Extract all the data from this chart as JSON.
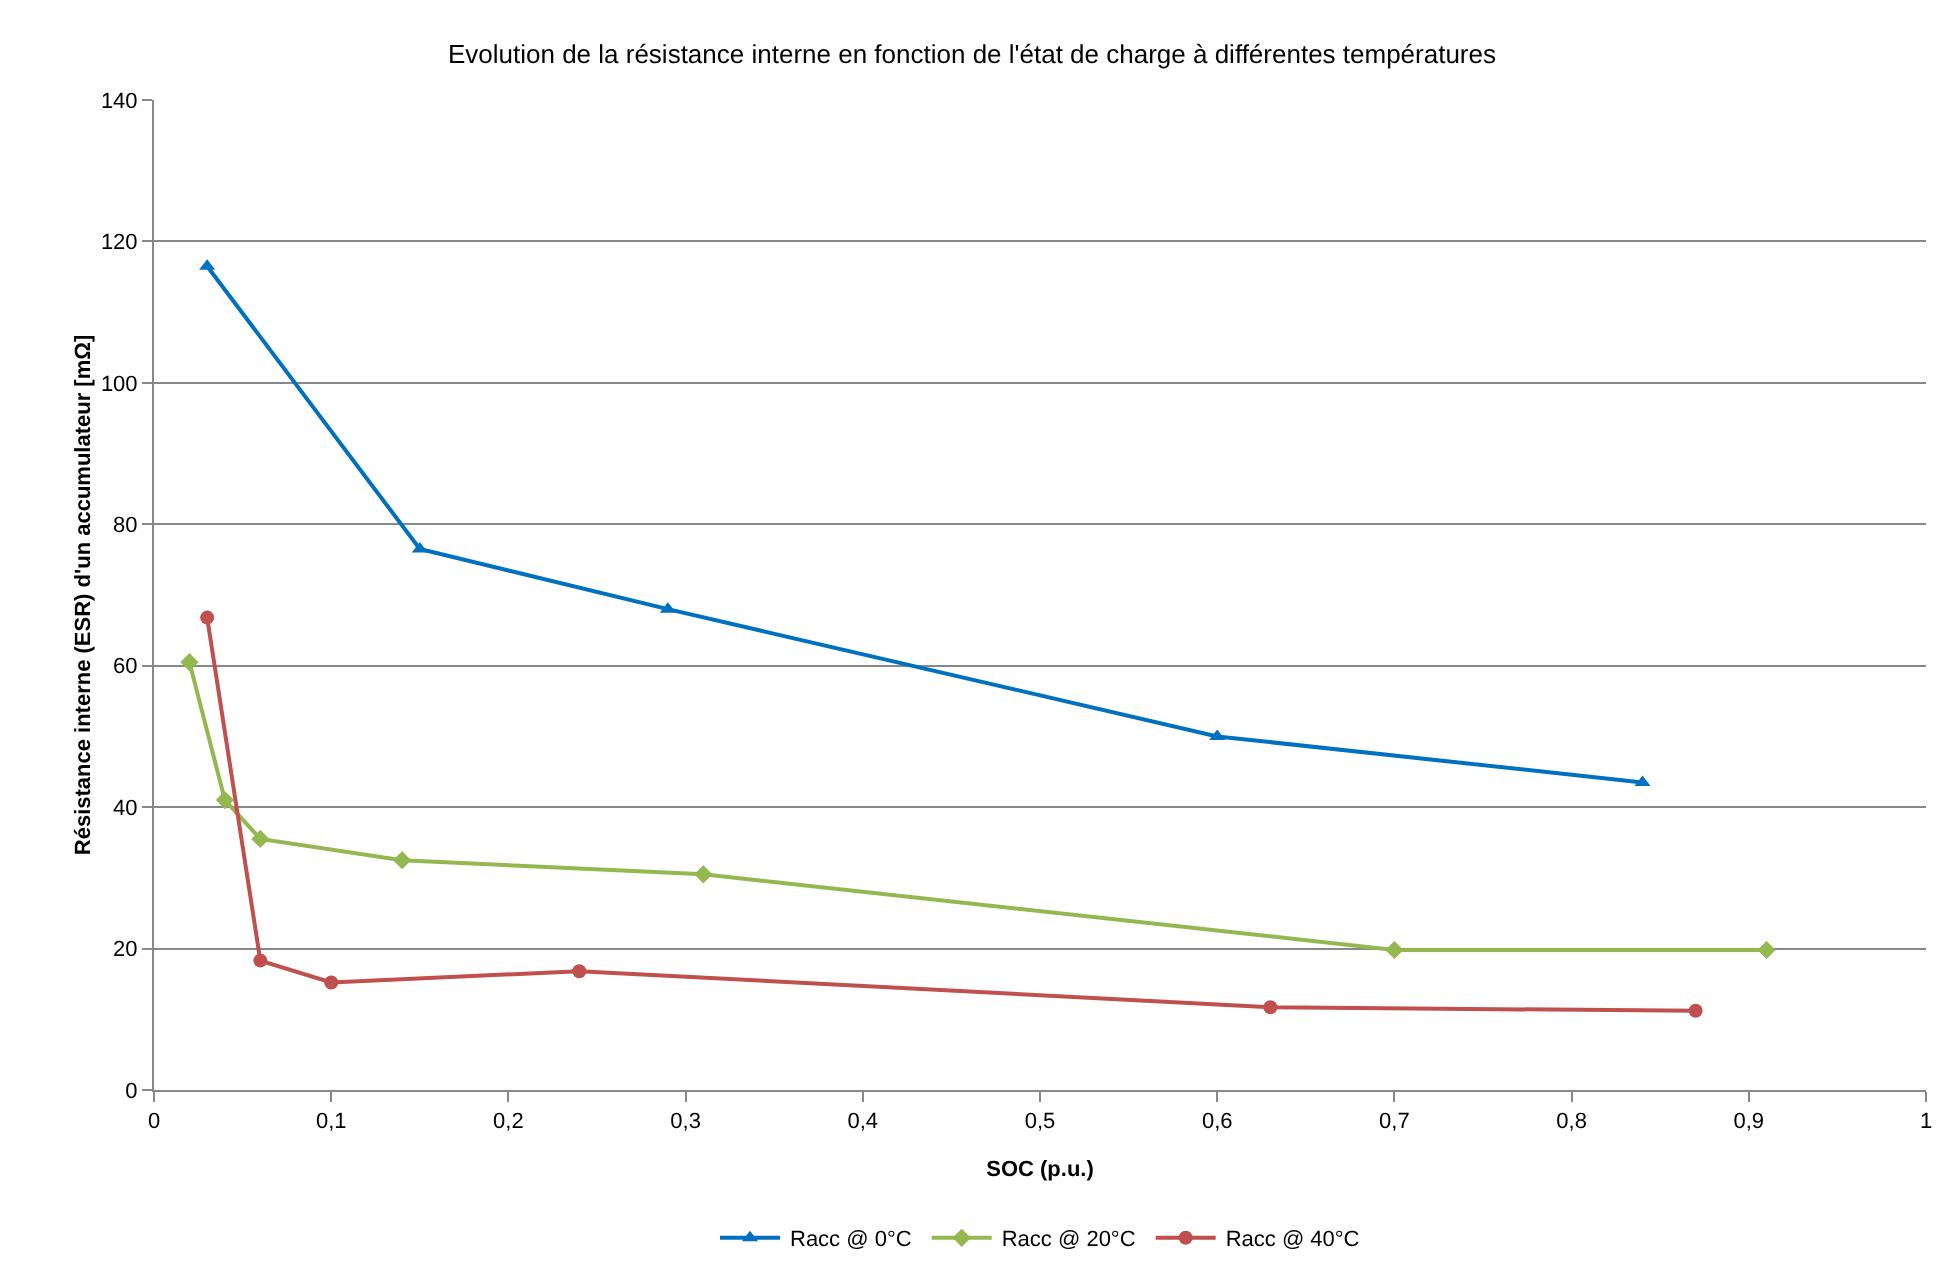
{
  "chart_data": {
    "type": "line",
    "title": "Evolution de la résistance interne en fonction de l'état de charge à différentes températures",
    "xlabel": "SOC (p.u.)",
    "ylabel": "Résistance interne (ESR) d'un accumulateur [mΩ]",
    "xlim": [
      0,
      1
    ],
    "xticks": [
      {
        "value": 0,
        "label": "0"
      },
      {
        "value": 0.1,
        "label": "0,1"
      },
      {
        "value": 0.2,
        "label": "0,2"
      },
      {
        "value": 0.3,
        "label": "0,3"
      },
      {
        "value": 0.4,
        "label": "0,4"
      },
      {
        "value": 0.5,
        "label": "0,5"
      },
      {
        "value": 0.6,
        "label": "0,6"
      },
      {
        "value": 0.7,
        "label": "0,7"
      },
      {
        "value": 0.8,
        "label": "0,8"
      },
      {
        "value": 0.9,
        "label": "0,9"
      },
      {
        "value": 1,
        "label": "1"
      }
    ],
    "ylim": [
      0,
      140
    ],
    "yticks": [
      0,
      20,
      40,
      60,
      80,
      100,
      120,
      140
    ],
    "grid": "y",
    "legend": "bottom",
    "series": [
      {
        "name": "Racc @ 0°C",
        "color": "#0070c0",
        "marker": "triangle",
        "x": [
          0.03,
          0.15,
          0.29,
          0.6,
          0.84
        ],
        "values": [
          116.5,
          76.5,
          68,
          50,
          43.5
        ]
      },
      {
        "name": "Racc @ 20°C",
        "color": "#92b84f",
        "marker": "diamond",
        "x": [
          0.02,
          0.04,
          0.06,
          0.14,
          0.31,
          0.7,
          0.91
        ],
        "values": [
          60.5,
          41,
          35.5,
          32.5,
          30.5,
          19.8,
          19.8
        ]
      },
      {
        "name": "Racc @ 40°C",
        "color": "#c0504d",
        "marker": "circle",
        "x": [
          0.03,
          0.06,
          0.1,
          0.24,
          0.63,
          0.87
        ],
        "values": [
          66.8,
          18.3,
          15.2,
          16.8,
          11.7,
          11.2
        ]
      }
    ]
  }
}
